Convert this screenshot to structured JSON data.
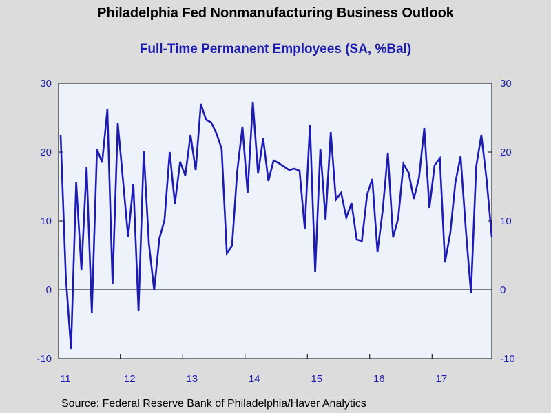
{
  "chart_data": {
    "type": "line",
    "title": "Philadelphia Fed Nonmanufacturing Business Outlook",
    "subtitle": "Full-Time Permanent Employees (SA, %Bal)",
    "source": "Source:  Federal Reserve Bank of Philadelphia/Haver Analytics",
    "ylim": [
      -10,
      30
    ],
    "yticks": [
      "30",
      "20",
      "10",
      "0",
      "-10"
    ],
    "xtick_labels": [
      "11",
      "12",
      "13",
      "14",
      "15",
      "16",
      "17"
    ],
    "grid": false,
    "zero_line": true,
    "colors": {
      "line": "#1c1cb4",
      "plot_bg": "#eef3fb",
      "page_bg": "#dcdcdc",
      "text": "#1c1cb4"
    },
    "series": [
      {
        "name": "",
        "start": "2011-01",
        "frequency": "monthly",
        "values": [
          22.5,
          2.0,
          -8.6,
          15.6,
          2.9,
          17.8,
          -3.4,
          20.4,
          18.5,
          26.2,
          0.9,
          24.2,
          16.0,
          7.7,
          15.4,
          -3.1,
          20.1,
          6.7,
          -0.1,
          7.4,
          10.1,
          20.0,
          12.5,
          18.6,
          16.6,
          22.5,
          17.4,
          27.0,
          24.7,
          24.3,
          22.7,
          20.5,
          5.3,
          6.4,
          17.2,
          23.7,
          14.1,
          27.3,
          16.9,
          22.0,
          15.8,
          18.8,
          18.4,
          17.9,
          17.4,
          17.6,
          17.3,
          8.9,
          24.0,
          2.6,
          20.5,
          10.2,
          22.9,
          13.1,
          14.1,
          10.5,
          12.6,
          7.3,
          7.1,
          13.8,
          16.1,
          5.5,
          11.5,
          19.9,
          7.6,
          10.4,
          18.3,
          17.0,
          13.2,
          16.3,
          23.5,
          11.9,
          18.1,
          19.1,
          4.0,
          8.2,
          15.6,
          19.4,
          8.8,
          -0.5,
          17.9,
          22.5,
          16.0,
          7.7
        ]
      }
    ]
  }
}
